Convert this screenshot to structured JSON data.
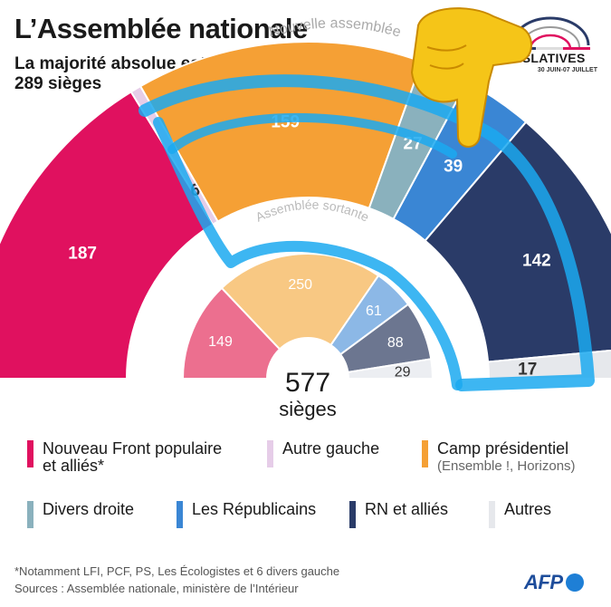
{
  "header": {
    "title": "L’Assemblée nationale",
    "subtitle": "La majorité absolue est à 289 sièges"
  },
  "logo": {
    "word": "GISLATIVES",
    "dates": "30 JUIN-07 JUILLET"
  },
  "chart_data": [
    {
      "type": "semicircle",
      "title": "Nouvelle assemblée",
      "series": [
        {
          "name": "Nouveau Front populaire et alliés*",
          "value": 187,
          "color": "#e0115f"
        },
        {
          "name": "Autre gauche",
          "value": 6,
          "color": "#e6cde8"
        },
        {
          "name": "Camp présidentiel",
          "value": 159,
          "color": "#f5a035"
        },
        {
          "name": "Divers droite",
          "value": 27,
          "color": "#8ab1bd"
        },
        {
          "name": "Les Républicains",
          "value": 39,
          "color": "#3a86d4"
        },
        {
          "name": "RN et alliés",
          "value": 142,
          "color": "#2a3b68"
        },
        {
          "name": "Autres",
          "value": 17,
          "color": "#e6e8ec"
        }
      ]
    },
    {
      "type": "semicircle",
      "title": "Assemblée sortante",
      "total_label": "577",
      "total_unit": "sièges",
      "series": [
        {
          "name": "Nouveau Front populaire et alliés*",
          "value": 149,
          "color": "#ec6f8f"
        },
        {
          "name": "Camp présidentiel",
          "value": 250,
          "color": "#f8c883"
        },
        {
          "name": "Les Républicains",
          "value": 61,
          "color": "#8cb8e6"
        },
        {
          "name": "RN et alliés",
          "value": 88,
          "color": "#6c7690"
        },
        {
          "name": "Autres",
          "value": 29,
          "color": "#eceef2"
        }
      ]
    }
  ],
  "legend": [
    {
      "label": "Nouveau Front populaire et alliés*",
      "sub": "",
      "color": "#e0115f"
    },
    {
      "label": "Autre gauche",
      "sub": "",
      "color": "#e6cde8"
    },
    {
      "label": "Camp présidentiel",
      "sub": "(Ensemble !, Horizons)",
      "color": "#f5a035"
    },
    {
      "label": "Divers droite",
      "sub": "",
      "color": "#8ab1bd"
    },
    {
      "label": "Les Républicains",
      "sub": "",
      "color": "#3a86d4"
    },
    {
      "label": "RN et alliés",
      "sub": "",
      "color": "#2a3b68"
    },
    {
      "label": "Autres",
      "sub": "",
      "color": "#e6e8ec"
    }
  ],
  "footer": {
    "note": "*Notamment LFI, PCF, PS, Les Écologistes et 6 divers gauche",
    "sources": "Sources : Assemblée nationale, ministère de l’Intérieur",
    "brand": "AFP"
  },
  "annotations": {
    "highlight_color": "#1ba9f0",
    "emoji": "pointing-down-hand"
  }
}
